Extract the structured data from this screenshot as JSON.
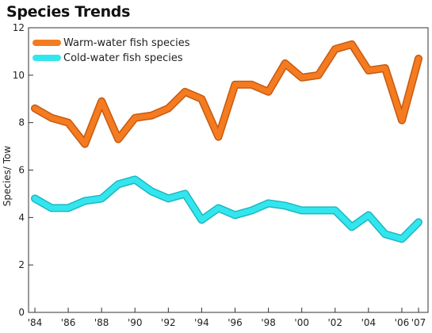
{
  "chart_data": {
    "type": "line",
    "title": "Species Trends",
    "ylabel": "Species/ Tow",
    "xlabel": "",
    "x": [
      1984,
      1985,
      1986,
      1987,
      1988,
      1989,
      1990,
      1991,
      1992,
      1993,
      1994,
      1995,
      1996,
      1997,
      1998,
      1999,
      2000,
      2001,
      2002,
      2003,
      2004,
      2005,
      2006,
      2007
    ],
    "xlim": [
      1984,
      2007
    ],
    "ylim": [
      0,
      12
    ],
    "yticks": [
      0,
      2,
      4,
      6,
      8,
      10,
      12
    ],
    "xticks": [
      {
        "value": 1984,
        "label": "'84"
      },
      {
        "value": 1986,
        "label": "'86"
      },
      {
        "value": 1988,
        "label": "'88"
      },
      {
        "value": 1990,
        "label": "'90"
      },
      {
        "value": 1992,
        "label": "'92"
      },
      {
        "value": 1994,
        "label": "'94"
      },
      {
        "value": 1996,
        "label": "'96"
      },
      {
        "value": 1998,
        "label": "'98"
      },
      {
        "value": 2000,
        "label": "'00"
      },
      {
        "value": 2002,
        "label": "'02"
      },
      {
        "value": 2004,
        "label": "'04"
      },
      {
        "value": 2006,
        "label": "'06"
      },
      {
        "value": 2007,
        "label": "'07"
      }
    ],
    "grid": false,
    "legend_position": "top-left",
    "series": [
      {
        "name": "Warm-water fish species",
        "color": "#f47b20",
        "values": [
          8.6,
          8.2,
          8.0,
          7.1,
          8.9,
          7.3,
          8.2,
          8.3,
          8.6,
          9.3,
          9.0,
          7.4,
          9.6,
          9.6,
          9.3,
          10.5,
          9.9,
          10.0,
          11.1,
          11.3,
          10.2,
          10.3,
          8.1,
          10.7
        ]
      },
      {
        "name": "Cold-water fish species",
        "color": "#33e6ee",
        "values": [
          4.8,
          4.4,
          4.4,
          4.7,
          4.8,
          5.4,
          5.6,
          5.1,
          4.8,
          5.0,
          3.9,
          4.4,
          4.1,
          4.3,
          4.6,
          4.5,
          4.3,
          4.3,
          4.3,
          3.6,
          4.1,
          3.3,
          3.1,
          3.8
        ]
      }
    ]
  }
}
